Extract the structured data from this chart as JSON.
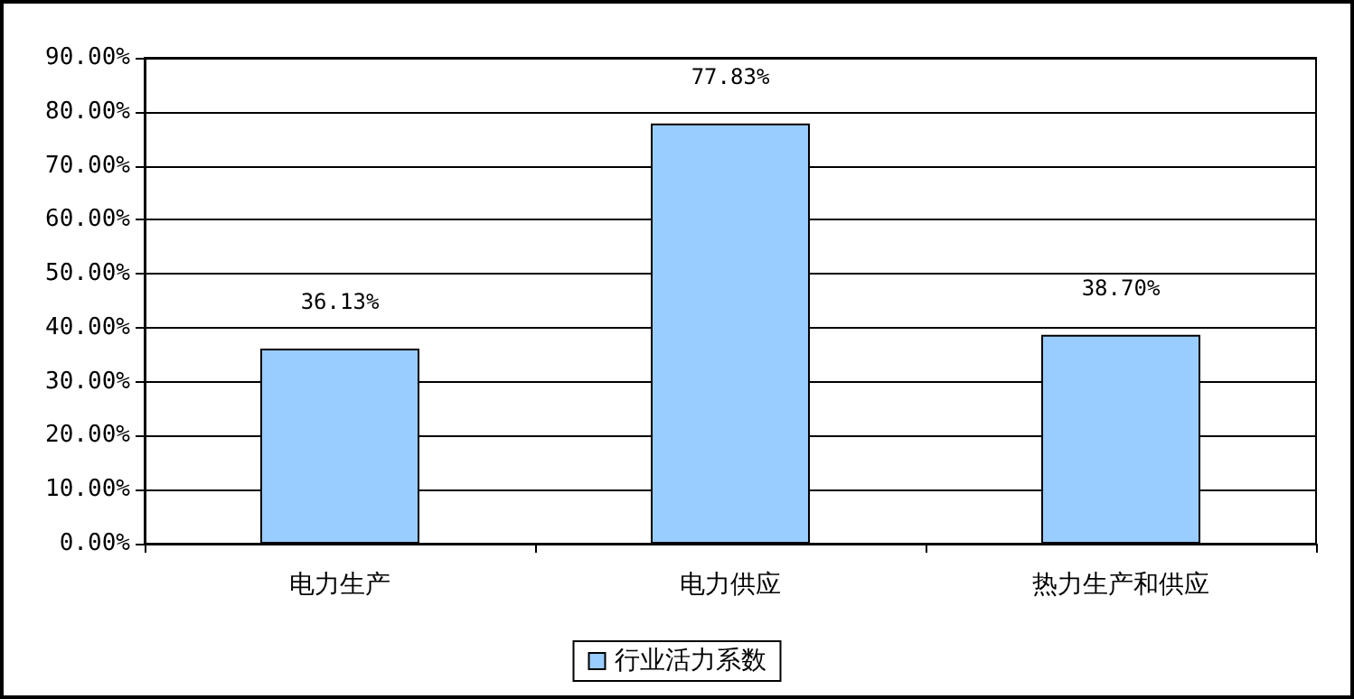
{
  "chart_data": {
    "type": "bar",
    "categories": [
      "电力生产",
      "电力供应",
      "热力生产和供应"
    ],
    "series": [
      {
        "name": "行业活力系数",
        "color": "#99ccff",
        "values": [
          36.13,
          77.83,
          38.7
        ],
        "value_labels": [
          "36.13%",
          "77.83%",
          "38.70%"
        ]
      }
    ],
    "ylim": [
      0,
      90
    ],
    "yticks": [
      {
        "value": 0,
        "label": "0.00%"
      },
      {
        "value": 10,
        "label": "10.00%"
      },
      {
        "value": 20,
        "label": "20.00%"
      },
      {
        "value": 30,
        "label": "30.00%"
      },
      {
        "value": 40,
        "label": "40.00%"
      },
      {
        "value": 50,
        "label": "50.00%"
      },
      {
        "value": 60,
        "label": "60.00%"
      },
      {
        "value": 70,
        "label": "70.00%"
      },
      {
        "value": 80,
        "label": "80.00%"
      },
      {
        "value": 90,
        "label": "90.00%"
      }
    ],
    "grid": "y",
    "legend": "bottom"
  }
}
